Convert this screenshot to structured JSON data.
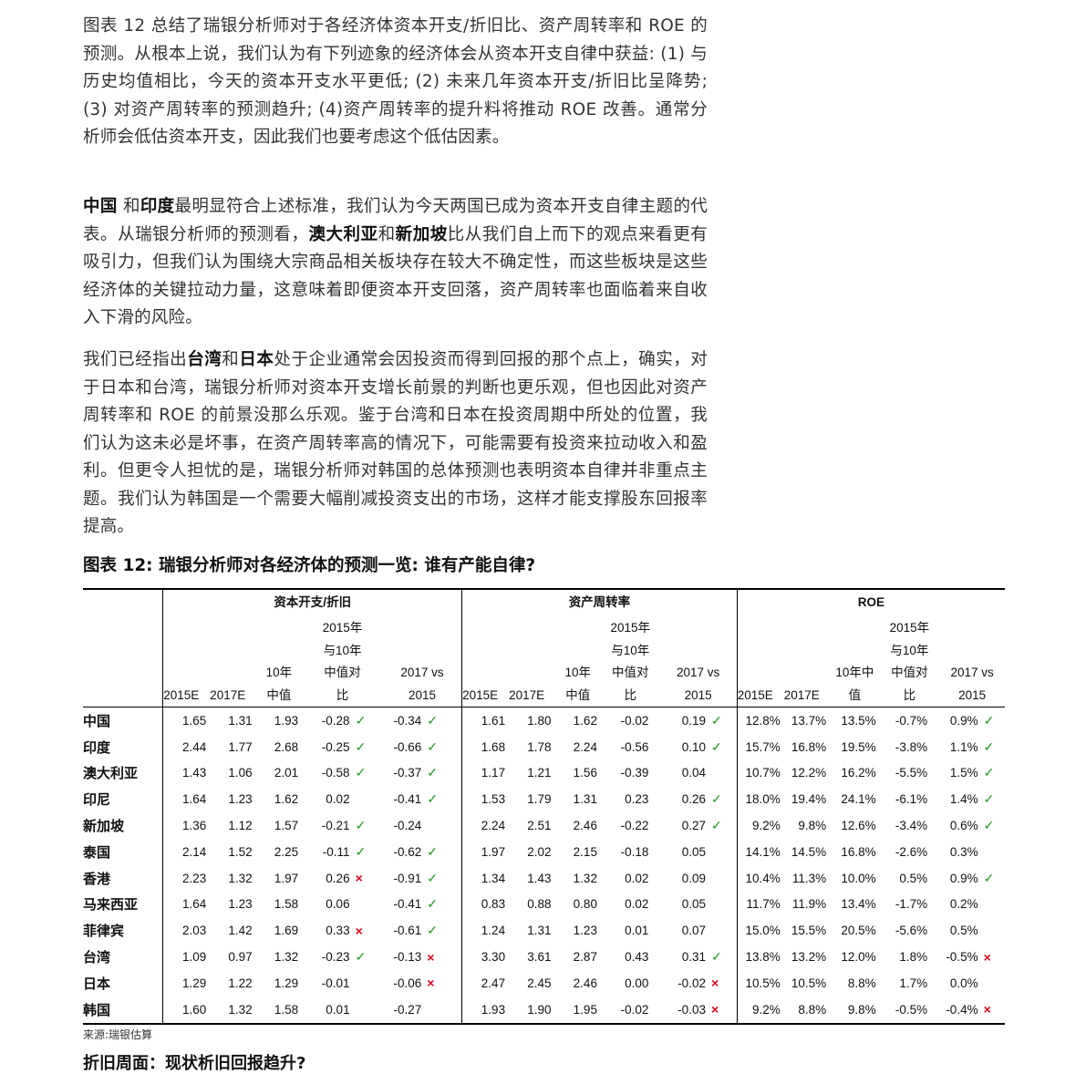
{
  "paragraphs": {
    "p1": [
      {
        "t": "图表 12 总结了瑞银分析师对于各经济体资本开支/折旧比、资产周转率和 ROE 的预测。从根本上说，我们认为有下列迹象的经济体会从资本开支自律中获益: (1) 与历史均值相比，今天的资本开支水平更低; (2) 未来几年资本开支/折旧比呈降势; (3) 对资产周转率的预测趋升; (4)资产周转率的提升料将推动 ROE 改善。通常分析师会低估资本开支，因此我们也要考虑这个低估因素。",
        "b": false
      }
    ],
    "p2": [
      {
        "t": "中国",
        "b": true
      },
      {
        "t": " 和",
        "b": false
      },
      {
        "t": "印度",
        "b": true
      },
      {
        "t": "最明显符合上述标准，我们认为今天两国已成为资本开支自律主题的代表。从瑞银分析师的预测看，",
        "b": false
      },
      {
        "t": "澳大利亚",
        "b": true
      },
      {
        "t": "和",
        "b": false
      },
      {
        "t": "新加坡",
        "b": true
      },
      {
        "t": "比从我们自上而下的观点来看更有吸引力，但我们认为围绕大宗商品相关板块存在较大不确定性，而这些板块是这些经济体的关键拉动力量，这意味着即便资本开支回落，资产周转率也面临着来自收入下滑的风险。",
        "b": false
      }
    ],
    "p3": [
      {
        "t": "我们已经指出",
        "b": false
      },
      {
        "t": "台湾",
        "b": true
      },
      {
        "t": "和",
        "b": false
      },
      {
        "t": "日本",
        "b": true
      },
      {
        "t": "处于企业通常会因投资而得到回报的那个点上，确实，对于日本和台湾，瑞银分析师对资本开支增长前景的判断也更乐观，但也因此对资产周转率和 ROE 的前景没那么乐观。鉴于台湾和日本在投资周期中所处的位置，我们认为这未必是坏事，在资产周转率高的情况下，可能需要有投资来拉动收入和盈利。但更令人担忧的是，瑞银分析师对韩国的总体预测也表明资本自律并非重点主题。我们认为韩国是一个需要大幅削减投资支出的市场，这样才能支撑股东回报率提高。",
        "b": false
      }
    ]
  },
  "figure": {
    "title": "图表 12: 瑞银分析师对各经济体的预测一览: 谁有产能自律?",
    "source": "来源:瑞银估算",
    "next_heading": "折旧周面：现状析旧回报趋升?"
  },
  "table": {
    "groups": [
      "资本开支/折旧",
      "资产周转率",
      "ROE"
    ],
    "col_headers": {
      "e2015": "2015E",
      "e2017": "2017E",
      "avg10": "10年\n中值",
      "avg10_roe": "10年中\n值",
      "vs10": "2015年\n与10年\n中值对\n比",
      "vs2015": "2017 vs\n2015"
    },
    "marks": {
      "ok": "✓",
      "no": "×"
    },
    "rows": [
      {
        "country": "中国",
        "capex": [
          "1.65",
          "1.31",
          "1.93",
          "-0.28",
          "ok",
          "-0.34",
          "ok"
        ],
        "turn": [
          "1.61",
          "1.80",
          "1.62",
          "-0.02",
          "",
          "0.19",
          "ok"
        ],
        "roe": [
          "12.8%",
          "13.7%",
          "13.5%",
          "-0.7%",
          "",
          "0.9%",
          "ok"
        ]
      },
      {
        "country": "印度",
        "capex": [
          "2.44",
          "1.77",
          "2.68",
          "-0.25",
          "ok",
          "-0.66",
          "ok"
        ],
        "turn": [
          "1.68",
          "1.78",
          "2.24",
          "-0.56",
          "",
          "0.10",
          "ok"
        ],
        "roe": [
          "15.7%",
          "16.8%",
          "19.5%",
          "-3.8%",
          "",
          "1.1%",
          "ok"
        ]
      },
      {
        "country": "澳大利亚",
        "capex": [
          "1.43",
          "1.06",
          "2.01",
          "-0.58",
          "ok",
          "-0.37",
          "ok"
        ],
        "turn": [
          "1.17",
          "1.21",
          "1.56",
          "-0.39",
          "",
          "0.04",
          ""
        ],
        "roe": [
          "10.7%",
          "12.2%",
          "16.2%",
          "-5.5%",
          "",
          "1.5%",
          "ok"
        ]
      },
      {
        "country": "印尼",
        "capex": [
          "1.64",
          "1.23",
          "1.62",
          "0.02",
          "",
          "-0.41",
          "ok"
        ],
        "turn": [
          "1.53",
          "1.79",
          "1.31",
          "0.23",
          "",
          "0.26",
          "ok"
        ],
        "roe": [
          "18.0%",
          "19.4%",
          "24.1%",
          "-6.1%",
          "",
          "1.4%",
          "ok"
        ]
      },
      {
        "country": "新加坡",
        "capex": [
          "1.36",
          "1.12",
          "1.57",
          "-0.21",
          "ok",
          "-0.24",
          ""
        ],
        "turn": [
          "2.24",
          "2.51",
          "2.46",
          "-0.22",
          "",
          "0.27",
          "ok"
        ],
        "roe": [
          "9.2%",
          "9.8%",
          "12.6%",
          "-3.4%",
          "",
          "0.6%",
          "ok"
        ]
      },
      {
        "country": "泰国",
        "capex": [
          "2.14",
          "1.52",
          "2.25",
          "-0.11",
          "ok",
          "-0.62",
          "ok"
        ],
        "turn": [
          "1.97",
          "2.02",
          "2.15",
          "-0.18",
          "",
          "0.05",
          ""
        ],
        "roe": [
          "14.1%",
          "14.5%",
          "16.8%",
          "-2.6%",
          "",
          "0.3%",
          ""
        ]
      },
      {
        "country": "香港",
        "capex": [
          "2.23",
          "1.32",
          "1.97",
          "0.26",
          "no",
          "-0.91",
          "ok"
        ],
        "turn": [
          "1.34",
          "1.43",
          "1.32",
          "0.02",
          "",
          "0.09",
          ""
        ],
        "roe": [
          "10.4%",
          "11.3%",
          "10.0%",
          "0.5%",
          "",
          "0.9%",
          "ok"
        ]
      },
      {
        "country": "马来西亚",
        "capex": [
          "1.64",
          "1.23",
          "1.58",
          "0.06",
          "",
          "-0.41",
          "ok"
        ],
        "turn": [
          "0.83",
          "0.88",
          "0.80",
          "0.02",
          "",
          "0.05",
          ""
        ],
        "roe": [
          "11.7%",
          "11.9%",
          "13.4%",
          "-1.7%",
          "",
          "0.2%",
          ""
        ]
      },
      {
        "country": "菲律宾",
        "capex": [
          "2.03",
          "1.42",
          "1.69",
          "0.33",
          "no",
          "-0.61",
          "ok"
        ],
        "turn": [
          "1.24",
          "1.31",
          "1.23",
          "0.01",
          "",
          "0.07",
          ""
        ],
        "roe": [
          "15.0%",
          "15.5%",
          "20.5%",
          "-5.6%",
          "",
          "0.5%",
          ""
        ]
      },
      {
        "country": "台湾",
        "capex": [
          "1.09",
          "0.97",
          "1.32",
          "-0.23",
          "ok",
          "-0.13",
          "no"
        ],
        "turn": [
          "3.30",
          "3.61",
          "2.87",
          "0.43",
          "",
          "0.31",
          "ok"
        ],
        "roe": [
          "13.8%",
          "13.2%",
          "12.0%",
          "1.8%",
          "",
          "-0.5%",
          "no"
        ]
      },
      {
        "country": "日本",
        "capex": [
          "1.29",
          "1.22",
          "1.29",
          "-0.01",
          "",
          "-0.06",
          "no"
        ],
        "turn": [
          "2.47",
          "2.45",
          "2.46",
          "0.00",
          "",
          "-0.02",
          "no"
        ],
        "roe": [
          "10.5%",
          "10.5%",
          "8.8%",
          "1.7%",
          "",
          "0.0%",
          ""
        ]
      },
      {
        "country": "韩国",
        "capex": [
          "1.60",
          "1.32",
          "1.58",
          "0.01",
          "",
          "-0.27",
          ""
        ],
        "turn": [
          "1.93",
          "1.90",
          "1.95",
          "-0.02",
          "",
          "-0.03",
          "no"
        ],
        "roe": [
          "9.2%",
          "8.8%",
          "9.8%",
          "-0.5%",
          "",
          "-0.4%",
          "no"
        ]
      }
    ]
  }
}
